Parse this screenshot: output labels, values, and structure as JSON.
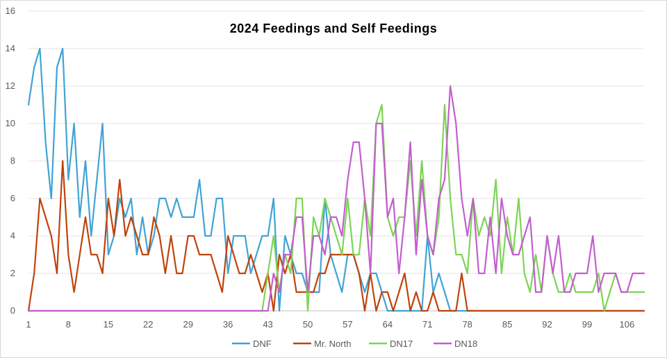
{
  "chart_data": {
    "type": "line",
    "title": "2024 Feedings and Self Feedings",
    "xlabel": "",
    "ylabel": "",
    "ylim": [
      0,
      16
    ],
    "yticks": [
      0,
      2,
      4,
      6,
      8,
      10,
      12,
      14,
      16
    ],
    "xlim": [
      1,
      109
    ],
    "xticks": [
      1,
      8,
      15,
      22,
      29,
      36,
      43,
      50,
      57,
      64,
      71,
      78,
      85,
      92,
      99,
      106
    ],
    "grid": "horizontal",
    "legend": "bottom-center",
    "series": [
      {
        "name": "DNF",
        "color": "#3fa3d5",
        "values": [
          11,
          13,
          14,
          9,
          6,
          13,
          14,
          7,
          10,
          5,
          8,
          4,
          7,
          10,
          3,
          4,
          6,
          5,
          6,
          3,
          5,
          3,
          4,
          6,
          6,
          5,
          6,
          5,
          5,
          5,
          7,
          4,
          4,
          6,
          6,
          2,
          4,
          4,
          4,
          2,
          3,
          4,
          4,
          6,
          0,
          4,
          3,
          2,
          2,
          1,
          1,
          1,
          6,
          3,
          2,
          1,
          3,
          3,
          2,
          1,
          2,
          2,
          1,
          0,
          0,
          0,
          0,
          0,
          0,
          0,
          4,
          1,
          2,
          1,
          0,
          0,
          0,
          0,
          0,
          0,
          0,
          0,
          0,
          0,
          0,
          0,
          0,
          0,
          0,
          0,
          0,
          0,
          0,
          0,
          0,
          0,
          0,
          0,
          0,
          0,
          0,
          0,
          0,
          0,
          0,
          0,
          0,
          0,
          0
        ]
      },
      {
        "name": "Mr. North",
        "color": "#c0420a",
        "values": [
          0,
          2,
          6,
          5,
          4,
          2,
          8,
          3,
          1,
          3,
          5,
          3,
          3,
          2,
          6,
          4,
          7,
          4,
          5,
          4,
          3,
          3,
          5,
          4,
          2,
          4,
          2,
          2,
          4,
          4,
          3,
          3,
          3,
          2,
          1,
          4,
          3,
          2,
          2,
          3,
          2,
          1,
          2,
          0,
          3,
          2,
          3,
          1,
          1,
          1,
          1,
          2,
          2,
          3,
          3,
          3,
          3,
          3,
          2,
          0,
          2,
          0,
          1,
          1,
          0,
          1,
          2,
          0,
          1,
          0,
          0,
          1,
          0,
          0,
          0,
          0,
          2,
          0,
          0,
          0,
          0,
          0,
          0,
          0,
          0,
          0,
          0,
          0,
          0,
          0,
          0,
          0,
          0,
          0,
          0,
          0,
          0,
          0,
          0,
          0,
          0,
          0,
          0,
          0,
          0,
          0,
          0,
          0,
          0
        ]
      },
      {
        "name": "DN17",
        "color": "#7dd454",
        "values": [
          0,
          0,
          0,
          0,
          0,
          0,
          0,
          0,
          0,
          0,
          0,
          0,
          0,
          0,
          0,
          0,
          0,
          0,
          0,
          0,
          0,
          0,
          0,
          0,
          0,
          0,
          0,
          0,
          0,
          0,
          0,
          0,
          0,
          0,
          0,
          0,
          0,
          0,
          0,
          0,
          0,
          0,
          2,
          4,
          1,
          3,
          2,
          6,
          6,
          0,
          5,
          4,
          6,
          5,
          4,
          3,
          6,
          3,
          3,
          6,
          4,
          10,
          11,
          5,
          4,
          5,
          5,
          8,
          4,
          8,
          4,
          3,
          5,
          11,
          6,
          3,
          3,
          2,
          6,
          4,
          5,
          4,
          7,
          2,
          5,
          3,
          6,
          2,
          1,
          3,
          1,
          4,
          2,
          1,
          1,
          2,
          1,
          1,
          1,
          1,
          2,
          0,
          1,
          2,
          1,
          1,
          1,
          1,
          1
        ]
      },
      {
        "name": "DN18",
        "color": "#c35ecf",
        "values": [
          0,
          0,
          0,
          0,
          0,
          0,
          0,
          0,
          0,
          0,
          0,
          0,
          0,
          0,
          0,
          0,
          0,
          0,
          0,
          0,
          0,
          0,
          0,
          0,
          0,
          0,
          0,
          0,
          0,
          0,
          0,
          0,
          0,
          0,
          0,
          0,
          0,
          0,
          0,
          0,
          0,
          0,
          0,
          2,
          1,
          3,
          3,
          5,
          5,
          1,
          4,
          4,
          3,
          5,
          5,
          4,
          7,
          9,
          9,
          6,
          2,
          10,
          10,
          5,
          6,
          2,
          5,
          9,
          3,
          7,
          4,
          3,
          6,
          7,
          12,
          10,
          6,
          4,
          6,
          2,
          2,
          5,
          2,
          6,
          4,
          3,
          3,
          4,
          5,
          1,
          1,
          4,
          2,
          4,
          1,
          1,
          2,
          2,
          2,
          4,
          1,
          2,
          2,
          2,
          1,
          1,
          2,
          2,
          2
        ]
      }
    ]
  }
}
